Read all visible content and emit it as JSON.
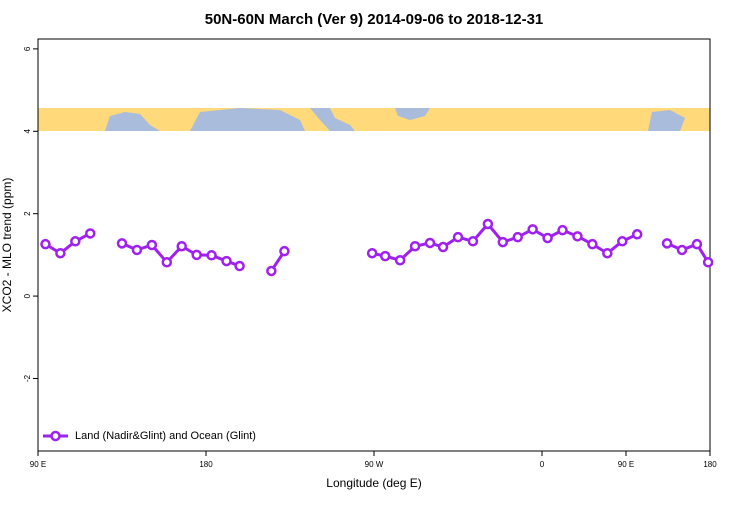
{
  "chart_data": {
    "type": "line",
    "title": "50N-60N March (Ver 9)   2014-09-06 to 2018-12-31",
    "xlabel": "Longitude (deg E)",
    "ylabel": "XCO2 - MLO trend (ppm)",
    "x": [
      94,
      102,
      110,
      118,
      126,
      135,
      143,
      151,
      159,
      167,
      175,
      183,
      191,
      198,
      206,
      215,
      222,
      245,
      269,
      276,
      284,
      292,
      300,
      307,
      315,
      323,
      331,
      339,
      347,
      355,
      363,
      371,
      379,
      387,
      395,
      403,
      411,
      419,
      427,
      435,
      443,
      449
    ],
    "series": [
      {
        "name": "Land (Nadir&Glint) and Ocean (Glint)",
        "color": "#a020f0",
        "values": [
          1.26,
          1.04,
          1.33,
          1.52,
          null,
          1.28,
          1.12,
          1.24,
          0.82,
          1.21,
          1.0,
          0.99,
          0.85,
          0.73,
          null,
          0.61,
          1.09,
          null,
          1.04,
          0.97,
          0.87,
          1.21,
          1.29,
          1.19,
          1.43,
          1.33,
          1.75,
          1.31,
          1.43,
          1.62,
          1.41,
          1.6,
          1.45,
          1.26,
          1.04,
          1.33,
          1.5,
          null,
          1.28,
          1.12,
          1.26,
          0.82
        ]
      }
    ],
    "xlim": [
      90,
      450
    ],
    "xticks": [
      {
        "value": 90,
        "label": "90 E"
      },
      180,
      {
        "value": 270,
        "label": "90 W"
      },
      {
        "value": 360,
        "label": "0"
      },
      {
        "value": 450,
        "label": "180"
      }
    ],
    "xticks_extra": [
      {
        "value": 405,
        "label": "90 E"
      }
    ],
    "ylim": [
      -3.76,
      6.24
    ],
    "yticks": [
      -2,
      0,
      2,
      4,
      6
    ],
    "legend": "bottom-left"
  }
}
